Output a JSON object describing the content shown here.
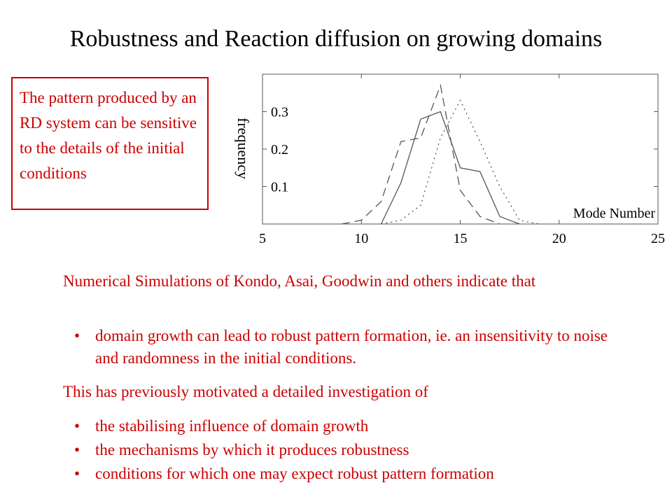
{
  "slide": {
    "title": "Robustness and Reaction diffusion on growing domains",
    "note": "The pattern produced by an RD system can be sensitive to the details of the initial conditions",
    "intro": "Numerical Simulations of Kondo, Asai, Goodwin and others indicate that",
    "bullets_a": [
      "domain growth can lead to robust pattern formation, ie. an insensitivity to noise and randomness in the initial conditions."
    ],
    "motivation": "This has previously motivated a detailed investigation of",
    "bullets_b": [
      "the stabilising influence of domain growth",
      "the mechanisms by which it produces robustness",
      "conditions for which one may expect robust pattern formation"
    ],
    "bullet_glyph": "•"
  },
  "colors": {
    "accent": "#cc0000",
    "text": "#000000",
    "axis": "#555555"
  },
  "chart_data": {
    "type": "line",
    "xlabel": "Mode Number",
    "ylabel": "frequency",
    "xlim": [
      5,
      25
    ],
    "ylim": [
      0,
      0.4
    ],
    "xticks": [
      5,
      10,
      15,
      20,
      25
    ],
    "yticks": [
      0.1,
      0.2,
      0.3
    ],
    "grid": false,
    "series": [
      {
        "style": "solid",
        "x": [
          11,
          12,
          13,
          14,
          15,
          16,
          17,
          18
        ],
        "y": [
          0,
          0.11,
          0.28,
          0.3,
          0.15,
          0.14,
          0.02,
          0
        ]
      },
      {
        "style": "dashed",
        "x": [
          9,
          10,
          11,
          12,
          13,
          14,
          15,
          16,
          17
        ],
        "y": [
          0,
          0.01,
          0.06,
          0.22,
          0.23,
          0.37,
          0.09,
          0.02,
          0
        ]
      },
      {
        "style": "dotted",
        "x": [
          11,
          12,
          13,
          14,
          15,
          16,
          17,
          18,
          19
        ],
        "y": [
          0,
          0.01,
          0.05,
          0.23,
          0.33,
          0.22,
          0.1,
          0.01,
          0
        ]
      }
    ]
  }
}
